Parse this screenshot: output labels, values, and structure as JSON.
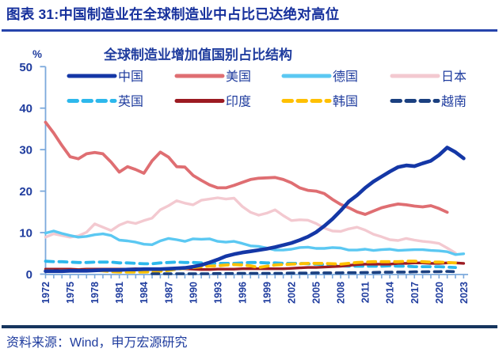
{
  "header": {
    "title": "图表 31:中国制造业在全球制造业中占比已达绝对高位"
  },
  "source": {
    "text": "资料来源：Wind，申万宏源研究"
  },
  "colors": {
    "header_text": "#16309C",
    "rule_top": "#2644AC",
    "rule_bottom": "#16355E",
    "axis": "#7CA9DC",
    "label_text": "#1F3C9E"
  },
  "chart_data": {
    "type": "line",
    "title": "全球制造业增加值国别占比结构",
    "unit_label": "%",
    "ylim": [
      0,
      50
    ],
    "y_ticks": [
      0,
      10,
      20,
      30,
      40,
      50
    ],
    "x_base_year": 1972,
    "x_end_year": 2023,
    "x_tick_years": [
      1972,
      1975,
      1978,
      1981,
      1984,
      1987,
      1990,
      1993,
      1996,
      1999,
      2002,
      2005,
      2008,
      2011,
      2014,
      2017,
      2020,
      2023
    ],
    "grid": false,
    "legend_position": "inside-top",
    "series": [
      {
        "key": "china",
        "name": "中国",
        "color": "#1437A6",
        "dash": null,
        "width": 4.6,
        "z": 8,
        "start_year": 1972,
        "values": [
          0.7,
          0.7,
          0.7,
          0.8,
          0.8,
          0.8,
          0.9,
          1.0,
          1.0,
          1.0,
          1.1,
          1.1,
          1.2,
          1.2,
          1.2,
          1.3,
          1.4,
          1.5,
          1.8,
          2.2,
          2.8,
          3.5,
          4.3,
          4.8,
          5.2,
          5.5,
          5.8,
          6.1,
          6.5,
          7.0,
          7.5,
          8.2,
          9.0,
          10.1,
          11.6,
          13.3,
          15.3,
          17.5,
          19.0,
          20.8,
          22.3,
          23.5,
          24.7,
          25.8,
          26.2,
          26.0,
          26.7,
          27.3,
          28.7,
          30.5,
          29.4,
          27.9
        ]
      },
      {
        "key": "usa",
        "name": "美国",
        "color": "#DF6E72",
        "dash": null,
        "width": 3.8,
        "z": 3,
        "start_year": 1972,
        "values": [
          36.6,
          34.0,
          31.0,
          28.3,
          27.8,
          29.0,
          29.3,
          29.0,
          27.0,
          24.6,
          25.9,
          25.2,
          24.3,
          27.3,
          29.4,
          28.2,
          25.9,
          25.8,
          23.8,
          22.6,
          21.5,
          20.8,
          20.8,
          21.4,
          22.1,
          22.8,
          23.1,
          23.2,
          23.3,
          22.8,
          22.0,
          20.8,
          20.2,
          20.0,
          19.4,
          18.0,
          16.8,
          16.0,
          15.0,
          14.4,
          15.2,
          16.0,
          16.5,
          16.9,
          16.7,
          16.4,
          16.2,
          16.5,
          15.8,
          14.9
        ]
      },
      {
        "key": "germany",
        "name": "德国",
        "color": "#5BC8F2",
        "dash": null,
        "width": 3.4,
        "z": 2,
        "start_year": 1972,
        "values": [
          9.9,
          10.4,
          9.8,
          9.3,
          8.9,
          9.1,
          9.5,
          9.7,
          9.3,
          8.2,
          8.0,
          7.7,
          7.2,
          7.1,
          8.0,
          8.6,
          8.3,
          7.9,
          8.5,
          8.4,
          8.5,
          7.9,
          7.7,
          7.9,
          7.4,
          6.8,
          6.7,
          6.3,
          5.8,
          5.8,
          6.0,
          6.4,
          6.5,
          6.2,
          6.2,
          6.4,
          6.3,
          5.8,
          5.8,
          6.0,
          5.7,
          5.9,
          6.0,
          5.7,
          5.8,
          5.9,
          5.9,
          5.7,
          5.6,
          5.4,
          4.7,
          4.9
        ]
      },
      {
        "key": "japan",
        "name": "日本",
        "color": "#F3C9D0",
        "dash": null,
        "width": 3.4,
        "z": 1,
        "start_year": 1972,
        "values": [
          8.9,
          9.7,
          9.3,
          8.9,
          9.2,
          10.1,
          12.1,
          11.3,
          10.5,
          11.8,
          12.6,
          12.2,
          12.9,
          13.5,
          15.5,
          16.5,
          17.7,
          17.1,
          16.7,
          17.8,
          18.1,
          18.4,
          18.1,
          18.3,
          16.3,
          14.9,
          14.2,
          14.7,
          15.5,
          14.1,
          12.9,
          13.1,
          13.0,
          12.2,
          11.1,
          10.4,
          10.3,
          10.9,
          11.3,
          10.6,
          9.6,
          9.0,
          8.3,
          8.1,
          8.6,
          8.2,
          7.9,
          7.7,
          7.4,
          6.3,
          5.1
        ]
      },
      {
        "key": "uk",
        "name": "英国",
        "color": "#2DB8EC",
        "dash": "10 7",
        "width": 3.8,
        "z": 4,
        "start_year": 1972,
        "values": [
          3.1,
          3.0,
          3.0,
          2.9,
          2.8,
          2.8,
          2.9,
          2.9,
          2.9,
          2.7,
          2.7,
          2.6,
          2.5,
          2.5,
          2.7,
          2.8,
          2.9,
          2.8,
          2.8,
          2.7,
          2.6,
          2.6,
          2.6,
          2.6,
          2.7,
          2.8,
          2.8,
          2.7,
          2.7,
          2.6,
          2.6,
          2.6,
          2.5,
          2.4,
          2.3,
          2.2,
          2.0,
          1.9,
          1.9,
          1.9,
          1.9,
          1.9,
          2.0,
          1.9,
          1.9,
          1.8,
          1.8,
          1.8,
          1.8,
          1.7,
          1.6
        ]
      },
      {
        "key": "india",
        "name": "印度",
        "color": "#9C1B22",
        "dash": null,
        "width": 3.4,
        "z": 5,
        "start_year": 1972,
        "values": [
          1.2,
          1.2,
          1.2,
          1.2,
          1.1,
          1.2,
          1.2,
          1.2,
          1.2,
          1.2,
          1.2,
          1.3,
          1.2,
          1.2,
          1.3,
          1.3,
          1.3,
          1.3,
          1.2,
          1.1,
          1.1,
          1.2,
          1.2,
          1.2,
          1.3,
          1.3,
          1.3,
          1.3,
          1.3,
          1.3,
          1.4,
          1.5,
          1.6,
          1.6,
          1.7,
          1.8,
          1.9,
          2.1,
          2.3,
          2.4,
          2.4,
          2.4,
          2.4,
          2.6,
          2.6,
          2.7,
          2.7,
          2.6,
          2.6,
          2.7,
          2.7,
          2.6
        ]
      },
      {
        "key": "korea",
        "name": "韩国",
        "color": "#FFC000",
        "dash": "10 7",
        "width": 3.8,
        "z": 6,
        "start_year": 1972,
        "values": [
          0.8,
          0.8,
          0.8,
          0.8,
          0.9,
          0.9,
          0.9,
          0.8,
          0.6,
          0.5,
          0.5,
          0.5,
          0.5,
          0.6,
          0.7,
          0.9,
          1.2,
          1.4,
          1.6,
          1.8,
          1.9,
          2.0,
          2.2,
          2.3,
          2.2,
          2.0,
          1.6,
          1.9,
          2.2,
          2.3,
          2.4,
          2.5,
          2.6,
          2.6,
          2.6,
          2.5,
          2.4,
          2.6,
          2.8,
          2.9,
          3.0,
          3.0,
          3.0,
          3.0,
          3.1,
          3.1,
          3.0,
          2.9,
          2.9,
          2.8,
          2.7
        ]
      },
      {
        "key": "vietnam",
        "name": "越南",
        "color": "#1B4080",
        "dash": "8.5 7",
        "width": 3.6,
        "z": 7,
        "start_year": 1985,
        "values": [
          0.1,
          0.1,
          0.1,
          0.1,
          0.1,
          0.1,
          0.1,
          0.1,
          0.15,
          0.15,
          0.15,
          0.2,
          0.2,
          0.2,
          0.2,
          0.2,
          0.2,
          0.25,
          0.25,
          0.25,
          0.3,
          0.3,
          0.3,
          0.3,
          0.35,
          0.35,
          0.4,
          0.4,
          0.45,
          0.45,
          0.5,
          0.5,
          0.55,
          0.55,
          0.6,
          0.6,
          0.65,
          0.6
        ]
      }
    ]
  }
}
